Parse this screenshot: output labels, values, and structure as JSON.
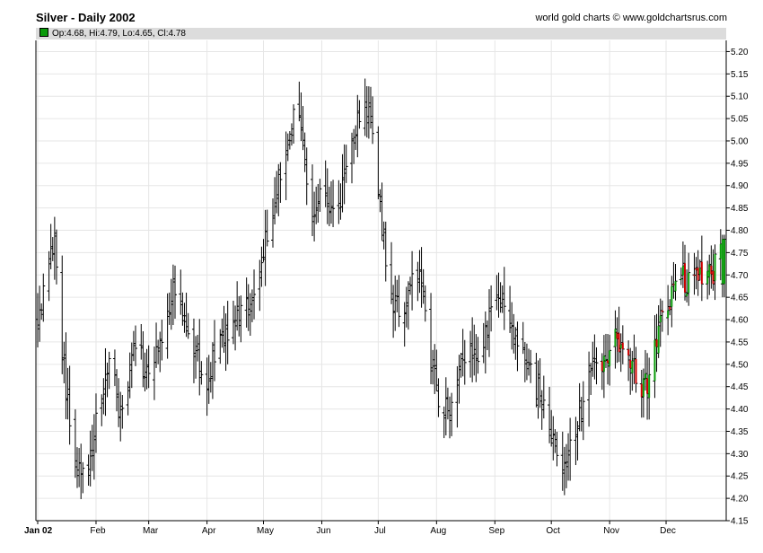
{
  "header": {
    "title": "Silver - Daily 2002",
    "credit": "world gold charts © www.goldchartsrus.com"
  },
  "ohlc_readout": "Op:4.68, Hi:4.79, Lo:4.65, Cl:4.78",
  "colors": {
    "up": "#0a9a0a",
    "down": "#cc0000",
    "bar": "#000000",
    "grid": "#e6e6e6",
    "readout_bg": "#dcdcdc"
  },
  "chart_data": {
    "type": "ohlc",
    "title": "Silver - Daily 2002",
    "ylim": [
      4.15,
      5.225
    ],
    "ytick_labels": [
      "5.20",
      "5.15",
      "5.10",
      "5.05",
      "5.00",
      "4.95",
      "4.90",
      "4.85",
      "4.80",
      "4.75",
      "4.70",
      "4.65",
      "4.60",
      "4.55",
      "4.50",
      "4.45",
      "4.40",
      "4.35",
      "4.30",
      "4.25",
      "4.20",
      "4.15"
    ],
    "yticks": [
      5.2,
      5.15,
      5.1,
      5.05,
      5.0,
      4.95,
      4.9,
      4.85,
      4.8,
      4.75,
      4.7,
      4.65,
      4.6,
      4.55,
      4.5,
      4.45,
      4.4,
      4.35,
      4.3,
      4.25,
      4.2,
      4.15
    ],
    "x_range_days": [
      0,
      365
    ],
    "xtick_labels": [
      "Jan 02",
      "Feb",
      "Mar",
      "Apr",
      "May",
      "Jun",
      "Jul",
      "Aug",
      "Sep",
      "Oct",
      "Nov",
      "Dec"
    ],
    "xticks_day": [
      0,
      31,
      59,
      90,
      120,
      151,
      181,
      212,
      243,
      273,
      304,
      334
    ],
    "grid": true,
    "series": [
      {
        "anchors_day": [
          0,
          3,
          6,
          9,
          12,
          15,
          18,
          20,
          24,
          27,
          30,
          33,
          36,
          39,
          42,
          45,
          48,
          52,
          56,
          60,
          63,
          66,
          70,
          74,
          78,
          82,
          86,
          90,
          94,
          98,
          102,
          106,
          110,
          114,
          118,
          122,
          126,
          130,
          134,
          138,
          142,
          146,
          150,
          154,
          158,
          162,
          166,
          170,
          174,
          178,
          182,
          186,
          190,
          194,
          198,
          202,
          206,
          210,
          214,
          218,
          222,
          226,
          230,
          234,
          238,
          242,
          246,
          250,
          254,
          258,
          262,
          266,
          270,
          274,
          278,
          282,
          286,
          290,
          294,
          298,
          302,
          306,
          310,
          314,
          318,
          322,
          326,
          330,
          334,
          338,
          342,
          346,
          350,
          354,
          358,
          362,
          365
        ],
        "anchors_close": [
          4.6,
          4.66,
          4.75,
          4.78,
          4.58,
          4.45,
          4.32,
          4.28,
          4.27,
          4.26,
          4.36,
          4.42,
          4.47,
          4.55,
          4.42,
          4.38,
          4.46,
          4.55,
          4.5,
          4.48,
          4.52,
          4.55,
          4.64,
          4.7,
          4.6,
          4.55,
          4.5,
          4.46,
          4.52,
          4.57,
          4.55,
          4.6,
          4.62,
          4.64,
          4.68,
          4.8,
          4.88,
          4.95,
          5.02,
          5.1,
          4.95,
          4.85,
          4.88,
          4.85,
          4.82,
          4.9,
          4.96,
          5.05,
          5.1,
          5.0,
          4.85,
          4.7,
          4.63,
          4.6,
          4.68,
          4.7,
          4.62,
          4.48,
          4.42,
          4.4,
          4.44,
          4.5,
          4.55,
          4.52,
          4.58,
          4.62,
          4.65,
          4.6,
          4.55,
          4.52,
          4.48,
          4.44,
          4.38,
          4.32,
          4.28,
          4.31,
          4.36,
          4.42,
          4.5,
          4.52,
          4.5,
          4.58,
          4.55,
          4.52,
          4.48,
          4.44,
          4.48,
          4.58,
          4.62,
          4.66,
          4.7,
          4.68,
          4.72,
          4.68,
          4.7,
          4.74,
          4.78
        ]
      }
    ],
    "last_bar": {
      "open": 4.68,
      "high": 4.79,
      "low": 4.65,
      "close": 4.78
    }
  }
}
